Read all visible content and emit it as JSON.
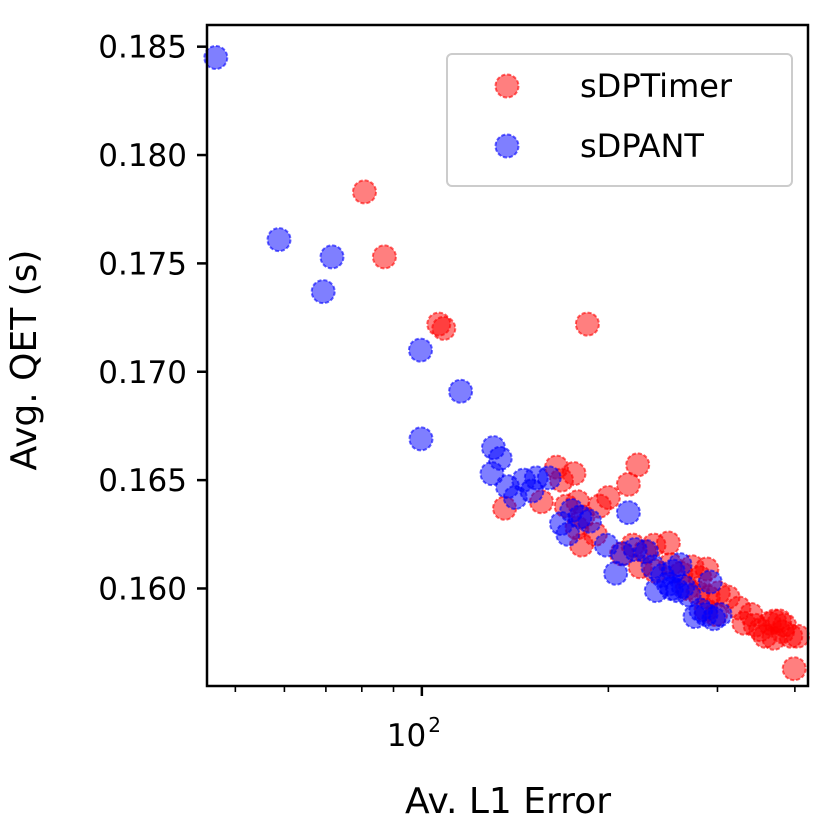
{
  "chart_data": {
    "type": "scatter",
    "title": "",
    "xlabel": "Av. L1 Error",
    "ylabel": "Avg. QET (s)",
    "xscale": "log",
    "x_ticks": [
      {
        "value": 100,
        "label": "10",
        "exponent": "2"
      }
    ],
    "y_ticks": [
      {
        "value": 0.16,
        "label": "0.160"
      },
      {
        "value": 0.165,
        "label": "0.165"
      },
      {
        "value": 0.17,
        "label": "0.170"
      },
      {
        "value": 0.175,
        "label": "0.175"
      },
      {
        "value": 0.18,
        "label": "0.180"
      },
      {
        "value": 0.185,
        "label": "0.185"
      }
    ],
    "xlim": [
      45,
      420
    ],
    "ylim": [
      0.1555,
      0.186
    ],
    "grid": false,
    "legend_position": "top-right",
    "series": [
      {
        "name": "sDPTimer",
        "color": "#ff0000",
        "points": [
          [
            80.8,
            0.1783
          ],
          [
            87.0,
            0.1753
          ],
          [
            106.5,
            0.1722
          ],
          [
            108.5,
            0.172
          ],
          [
            185,
            0.1722
          ],
          [
            136.0,
            0.1637
          ],
          [
            165.0,
            0.1656
          ],
          [
            176.0,
            0.1653
          ],
          [
            168.0,
            0.165
          ],
          [
            156.0,
            0.164
          ],
          [
            171.0,
            0.1638
          ],
          [
            178.5,
            0.164
          ],
          [
            200.0,
            0.1642
          ],
          [
            193.5,
            0.1638
          ],
          [
            182.0,
            0.1633
          ],
          [
            215.5,
            0.1648
          ],
          [
            223.0,
            0.1657
          ],
          [
            178.0,
            0.1628
          ],
          [
            190.5,
            0.1625
          ],
          [
            181.0,
            0.162
          ],
          [
            210.0,
            0.1616
          ],
          [
            219.0,
            0.162
          ],
          [
            229.0,
            0.1617
          ],
          [
            237.0,
            0.162
          ],
          [
            250.0,
            0.1621
          ],
          [
            225.0,
            0.161
          ],
          [
            238.0,
            0.1608
          ],
          [
            252.0,
            0.1611
          ],
          [
            262.0,
            0.1607
          ],
          [
            273.0,
            0.161
          ],
          [
            281.0,
            0.1605
          ],
          [
            288.5,
            0.1609
          ],
          [
            268.0,
            0.16
          ],
          [
            279.0,
            0.1598
          ],
          [
            290.0,
            0.1596
          ],
          [
            301.0,
            0.1598
          ],
          [
            312.0,
            0.1596
          ],
          [
            287.5,
            0.159
          ],
          [
            298.0,
            0.1588
          ],
          [
            325.0,
            0.1591
          ],
          [
            340.0,
            0.1588
          ],
          [
            331.0,
            0.1584
          ],
          [
            345.0,
            0.1583
          ],
          [
            352.0,
            0.1581
          ],
          [
            364.0,
            0.1584
          ],
          [
            371.0,
            0.1585
          ],
          [
            378.0,
            0.1585
          ],
          [
            385.0,
            0.1583
          ],
          [
            358.0,
            0.1578
          ],
          [
            370.0,
            0.1577
          ],
          [
            382.0,
            0.158
          ],
          [
            394.0,
            0.1578
          ],
          [
            404.0,
            0.1578
          ],
          [
            399.0,
            0.1563
          ]
        ]
      },
      {
        "name": "sDPANT",
        "color": "#0000ff",
        "points": [
          [
            46.5,
            0.1845
          ],
          [
            58.8,
            0.1761
          ],
          [
            71.6,
            0.1753
          ],
          [
            69.3,
            0.1737
          ],
          [
            99.5,
            0.171
          ],
          [
            115.5,
            0.1691
          ],
          [
            99.7,
            0.1669
          ],
          [
            130.5,
            0.1665
          ],
          [
            133.8,
            0.166
          ],
          [
            129.8,
            0.1653
          ],
          [
            137.5,
            0.1647
          ],
          [
            146.0,
            0.165
          ],
          [
            153.0,
            0.1651
          ],
          [
            160.5,
            0.1651
          ],
          [
            141.5,
            0.1642
          ],
          [
            150.5,
            0.1645
          ],
          [
            168.0,
            0.163
          ],
          [
            174.5,
            0.1636
          ],
          [
            180.0,
            0.1633
          ],
          [
            172.0,
            0.1625
          ],
          [
            186.5,
            0.1631
          ],
          [
            198.5,
            0.162
          ],
          [
            215.5,
            0.1635
          ],
          [
            205.5,
            0.1607
          ],
          [
            211.0,
            0.1616
          ],
          [
            221.0,
            0.1618
          ],
          [
            230.5,
            0.1617
          ],
          [
            236.0,
            0.161
          ],
          [
            244.5,
            0.1606
          ],
          [
            254.5,
            0.1608
          ],
          [
            261.0,
            0.1611
          ],
          [
            239.0,
            0.1599
          ],
          [
            250.0,
            0.1602
          ],
          [
            253.0,
            0.16
          ],
          [
            258.5,
            0.1599
          ],
          [
            264.0,
            0.1601
          ],
          [
            270.0,
            0.1597
          ],
          [
            282.0,
            0.159
          ],
          [
            276.0,
            0.1587
          ],
          [
            287.5,
            0.1588
          ],
          [
            296.0,
            0.1586
          ],
          [
            303.0,
            0.1588
          ],
          [
            292.0,
            0.1603
          ]
        ]
      }
    ]
  }
}
